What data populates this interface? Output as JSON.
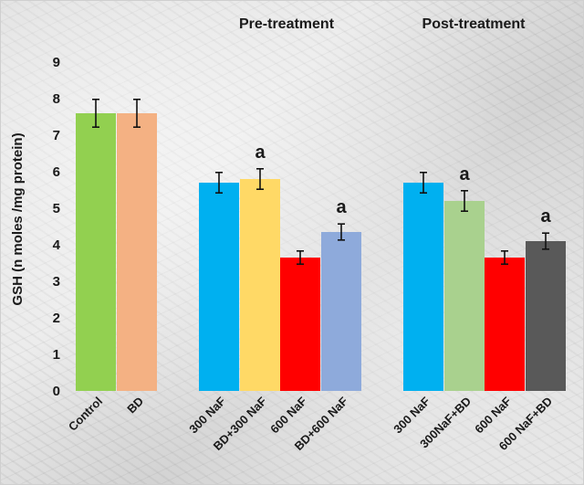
{
  "chart_data": {
    "type": "bar",
    "ylabel": "GSH (n moles /mg  protein)",
    "xlabel": "",
    "ylim": [
      0,
      9
    ],
    "yticks": [
      0,
      1,
      2,
      3,
      4,
      5,
      6,
      7,
      8,
      9
    ],
    "grid": false,
    "legend": "none",
    "group_labels": [
      "Pre-treatment",
      "Post-treatment"
    ],
    "categories": [
      "Control",
      "BD",
      "300 NaF",
      "BD+300 NaF",
      "600 NaF",
      "BD+600 NaF",
      "300 NaF",
      "300NaF+BD",
      "600 NaF",
      "600 NaF+BD"
    ],
    "values": [
      7.6,
      7.6,
      5.7,
      5.8,
      3.65,
      4.35,
      5.7,
      5.2,
      3.65,
      4.1
    ],
    "errors": [
      0.38,
      0.38,
      0.28,
      0.28,
      0.18,
      0.22,
      0.28,
      0.28,
      0.18,
      0.22
    ],
    "annotations": [
      "",
      "",
      "",
      "a",
      "",
      "a",
      "",
      "a",
      "",
      "a"
    ],
    "colors": [
      "#92d050",
      "#f4b183",
      "#00b0f0",
      "#ffd966",
      "#ff0000",
      "#8eaadb",
      "#00b0f0",
      "#a9d18e",
      "#ff0000",
      "#595959"
    ]
  }
}
